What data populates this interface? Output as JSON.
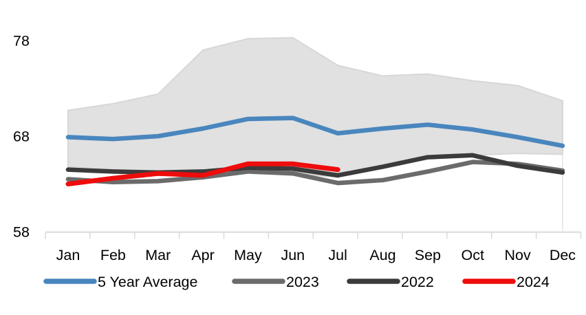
{
  "chart_data": {
    "type": "line",
    "title": "",
    "categories": [
      "Jan",
      "Feb",
      "Mar",
      "Apr",
      "May",
      "Jun",
      "Jul",
      "Aug",
      "Sep",
      "Oct",
      "Nov",
      "Dec"
    ],
    "y_axis": {
      "tick_values": [
        58,
        68,
        78
      ],
      "tick_labels": [
        "58",
        "68",
        "78"
      ],
      "range": [
        58,
        80
      ],
      "grid": "off"
    },
    "band": {
      "name": "5-year min-max range",
      "fill": "#E1E1E1",
      "edge": "#D7D7D7",
      "max": [
        70.7,
        71.4,
        72.4,
        77.0,
        78.2,
        78.3,
        75.4,
        74.3,
        74.5,
        73.8,
        73.3,
        71.7
      ],
      "min": [
        64.8,
        64.5,
        64.3,
        64.0,
        64.3,
        64.1,
        63.7,
        64.8,
        65.8,
        66.0,
        66.2,
        66.1
      ]
    },
    "series": [
      {
        "name": "5 Year Average",
        "color": "#4986BE",
        "width": 6.5,
        "values": [
          67.9,
          67.7,
          68.0,
          68.8,
          69.8,
          69.9,
          68.3,
          68.8,
          69.2,
          68.7,
          67.9,
          67.0
        ]
      },
      {
        "name": "2023",
        "color": "#6B6B6B",
        "width": 6.5,
        "values": [
          63.5,
          63.2,
          63.3,
          63.7,
          64.3,
          64.1,
          63.1,
          63.4,
          64.3,
          65.3,
          65.1,
          64.4
        ]
      },
      {
        "name": "2022",
        "color": "#3B3B3B",
        "width": 6.5,
        "values": [
          64.5,
          64.3,
          64.2,
          64.3,
          64.7,
          64.6,
          63.9,
          64.8,
          65.8,
          66.0,
          64.9,
          64.2
        ]
      },
      {
        "name": "2024",
        "color": "#EE0C0C",
        "width": 7,
        "values": [
          63.0,
          63.6,
          64.1,
          63.9,
          65.1,
          65.1,
          64.5
        ]
      }
    ],
    "legend_position": "bottom",
    "axis_color": "#D9D9D9"
  }
}
